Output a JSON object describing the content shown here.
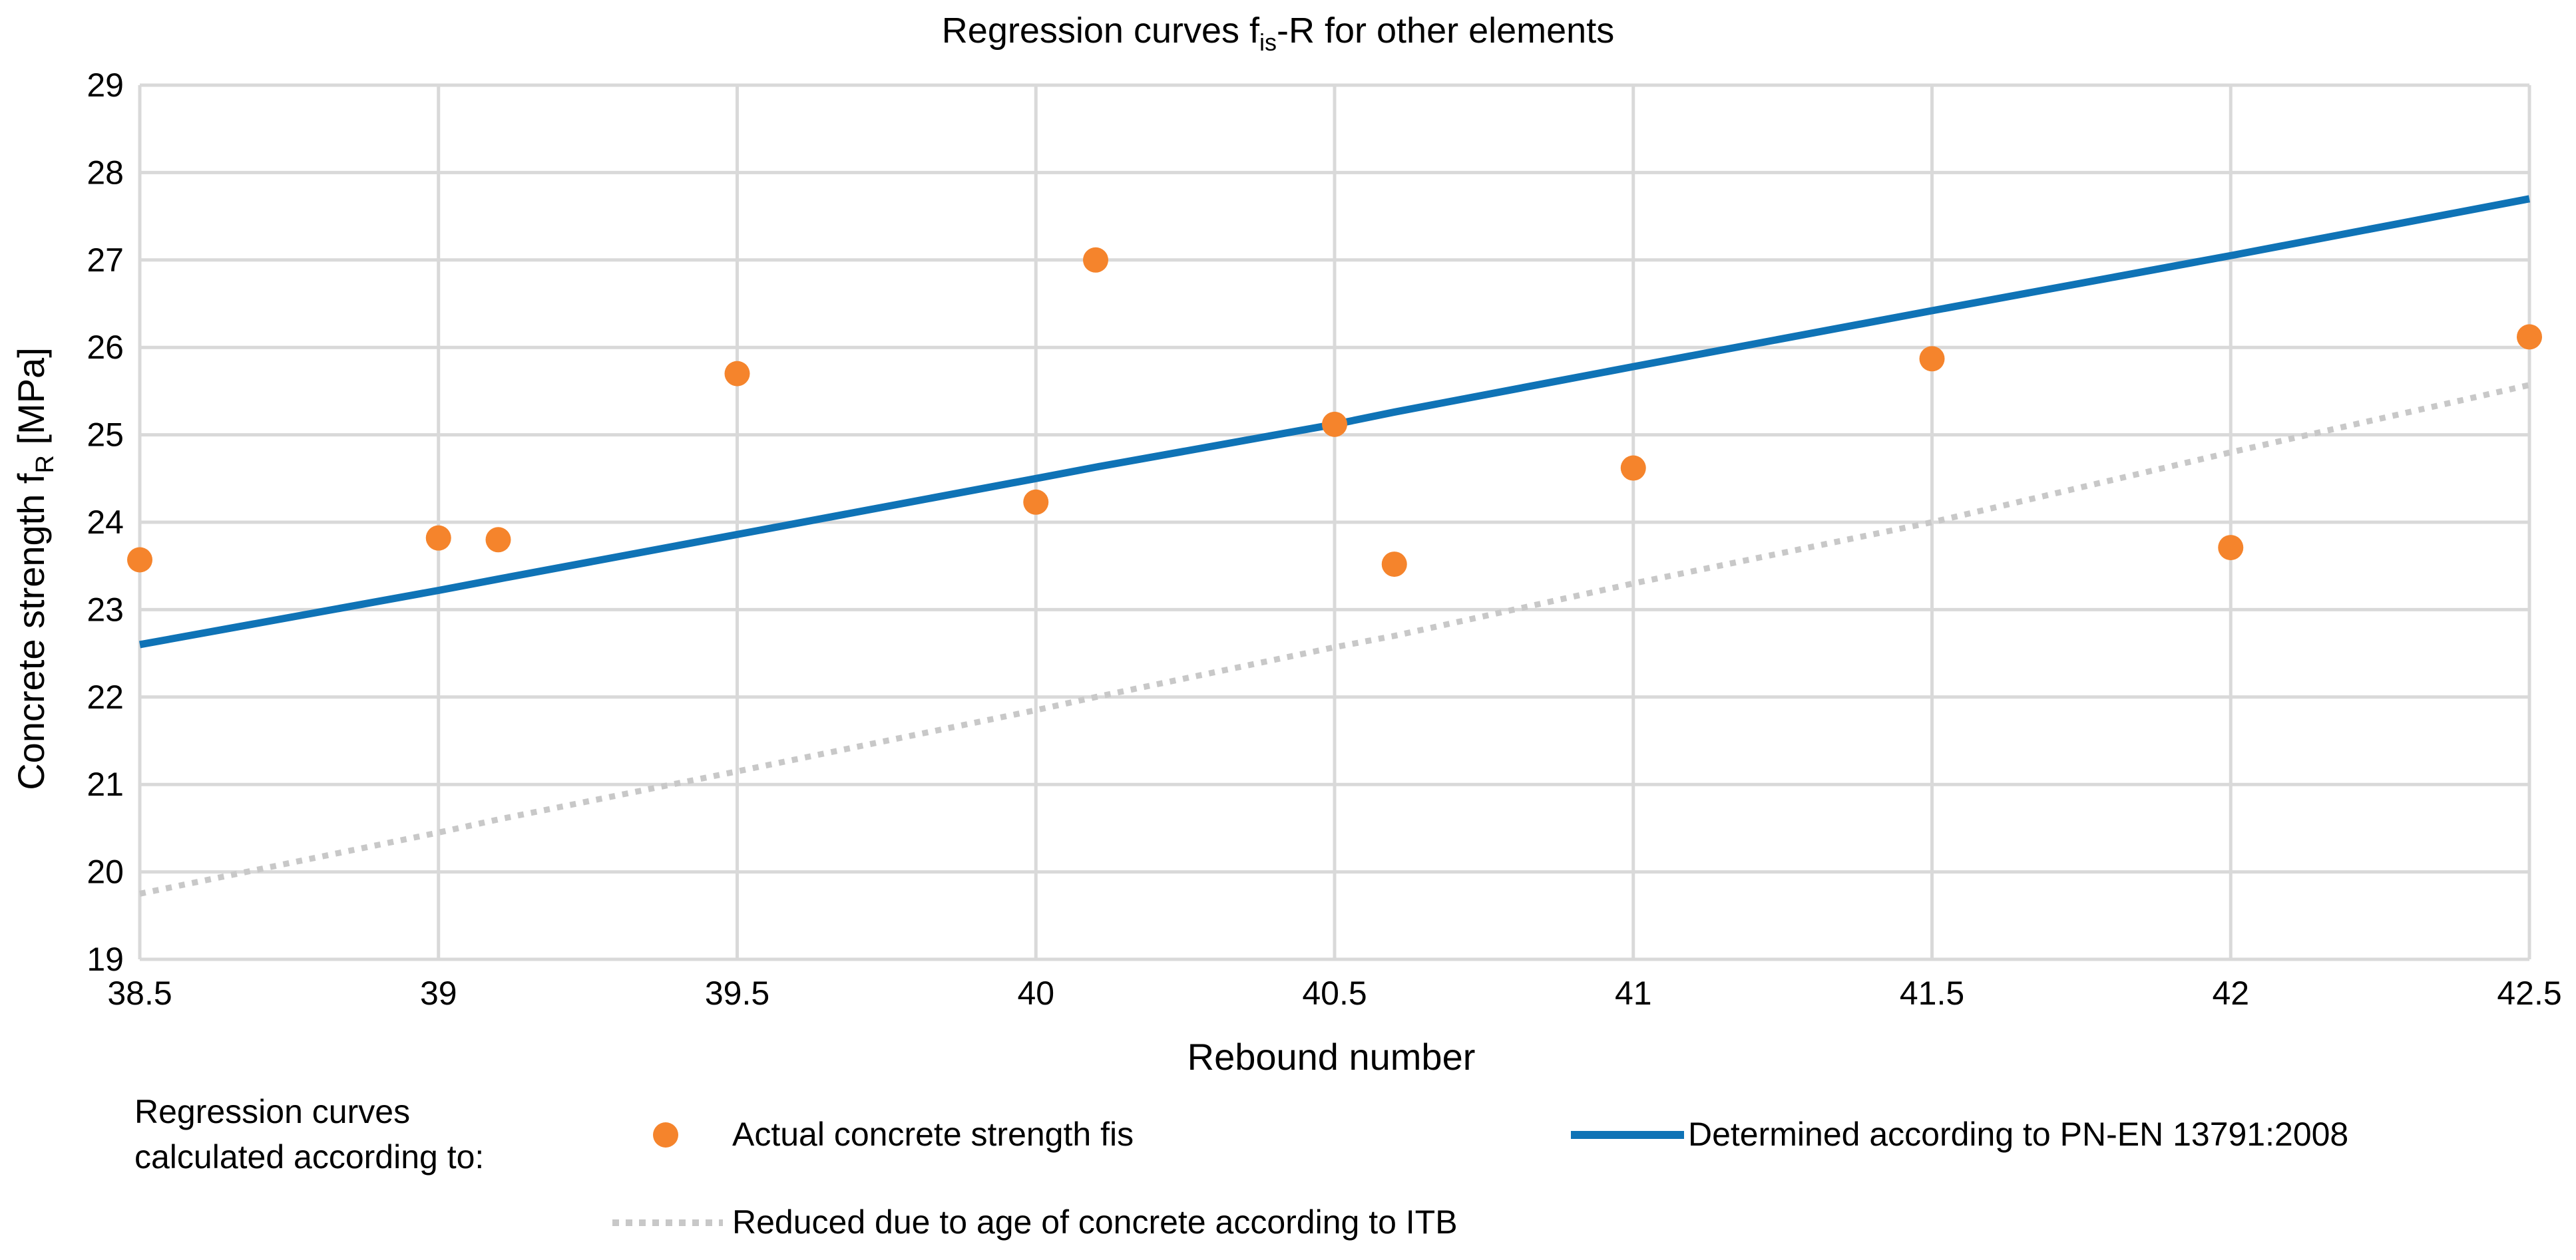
{
  "chart_data": {
    "type": "scatter",
    "title_main": "Regression curves f",
    "title_sub": "is",
    "title_rest": "-R for other elements",
    "xlabel": "Rebound number",
    "ylabel_main": "Concrete strength f",
    "ylabel_sub": "R",
    "ylabel_rest": " [MPa]",
    "xlim": [
      38.5,
      42.5
    ],
    "ylim": [
      19,
      29
    ],
    "x_ticks": [
      "38.5",
      "39",
      "39.5",
      "40",
      "40.5",
      "41",
      "41.5",
      "42",
      "42.5"
    ],
    "y_ticks": [
      "19",
      "20",
      "21",
      "22",
      "23",
      "24",
      "25",
      "26",
      "27",
      "28",
      "29"
    ],
    "grid": true,
    "legend_title_line1": "Regression curves",
    "legend_title_line2": "calculated according to:",
    "series": [
      {
        "name": "Actual concrete strength fis",
        "kind": "points",
        "color": "#f5842c",
        "x": [
          38.5,
          39.0,
          39.1,
          39.5,
          40.0,
          40.1,
          40.5,
          40.6,
          41.0,
          41.5,
          42.0,
          42.5
        ],
        "y": [
          23.57,
          23.82,
          23.8,
          25.7,
          24.23,
          27.0,
          25.12,
          23.52,
          24.62,
          25.87,
          23.71,
          26.12
        ]
      },
      {
        "name": "Determined according to PN-EN 13791:2008",
        "kind": "line",
        "color": "#0f73b6",
        "x": [
          38.5,
          39.0,
          39.1,
          39.5,
          40.0,
          40.1,
          40.5,
          40.6,
          41.0,
          41.5,
          42.0,
          42.5
        ],
        "y": [
          22.6,
          23.22,
          23.35,
          23.86,
          24.5,
          24.63,
          25.12,
          25.26,
          25.78,
          26.42,
          27.05,
          27.7
        ]
      },
      {
        "name": "Reduced due to age of concrete according to ITB",
        "kind": "dotted",
        "color": "#c8c8c8",
        "x": [
          38.5,
          39.0,
          39.1,
          39.5,
          40.0,
          40.1,
          40.5,
          40.6,
          41.0,
          41.5,
          42.0,
          42.5
        ],
        "y": [
          19.75,
          20.45,
          20.6,
          21.15,
          21.85,
          22.0,
          22.57,
          22.7,
          23.3,
          24.0,
          24.8,
          25.57
        ]
      }
    ]
  }
}
